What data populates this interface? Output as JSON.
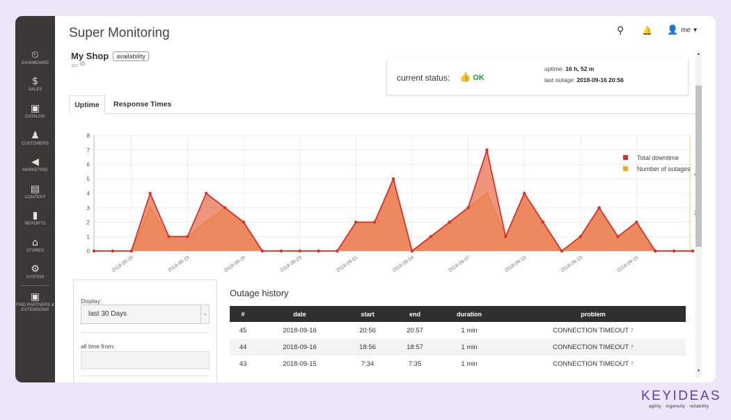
{
  "app": {
    "title": "Super Monitoring"
  },
  "sidebar": {
    "items": [
      {
        "label": "DASHBOARD",
        "icon": "dashboard-icon",
        "glyph": "⏲"
      },
      {
        "label": "SALES",
        "icon": "dollar-icon",
        "glyph": "$"
      },
      {
        "label": "CATALOG",
        "icon": "catalog-box-icon",
        "glyph": "▣"
      },
      {
        "label": "CUSTOMERS",
        "icon": "customers-icon",
        "glyph": "♟"
      },
      {
        "label": "MARKETING",
        "icon": "megaphone-icon",
        "glyph": "◀"
      },
      {
        "label": "CONTENT",
        "icon": "content-layout-icon",
        "glyph": "▤"
      },
      {
        "label": "REPORTS",
        "icon": "bar-chart-icon",
        "glyph": "▮"
      },
      {
        "label": "STORES",
        "icon": "store-icon",
        "glyph": "⌂"
      },
      {
        "label": "SYSTEM",
        "icon": "gear-icon",
        "glyph": "⚙"
      },
      {
        "label": "FIND PARTNERS & EXTENSIONS",
        "icon": "partners-box-icon",
        "glyph": "▣"
      }
    ]
  },
  "topbar": {
    "search_glyph": "⚲",
    "bell_glyph": "🔔",
    "user_glyph": "👤",
    "user_label": "me",
    "user_caret": "▾"
  },
  "shop": {
    "name": "My Shop",
    "badge": "availability",
    "back_glyph": "⇦",
    "gear_glyph": "⚙"
  },
  "status": {
    "label": "current status:",
    "value": "OK",
    "thumb_glyph": "👍",
    "ok_color": "#1a9b2b",
    "uptime_label": "uptime:",
    "uptime_value": "16 h, 52 m",
    "last_outage_label": "last outage:",
    "last_outage_value": "2018-09-16 20:56"
  },
  "tabs": [
    {
      "label": "Uptime",
      "active": true
    },
    {
      "label": "Response Times",
      "active": false
    }
  ],
  "chart_data": {
    "type": "area",
    "x": [
      "2018-08-18",
      "2018-08-19",
      "2018-08-20",
      "2018-08-21",
      "2018-08-22",
      "2018-08-23",
      "2018-08-24",
      "2018-08-25",
      "2018-08-26",
      "2018-08-27",
      "2018-08-28",
      "2018-08-29",
      "2018-08-30",
      "2018-08-31",
      "2018-09-01",
      "2018-09-02",
      "2018-09-03",
      "2018-09-04",
      "2018-09-05",
      "2018-09-06",
      "2018-09-07",
      "2018-09-08",
      "2018-09-09",
      "2018-09-10",
      "2018-09-11",
      "2018-09-12",
      "2018-09-13",
      "2018-09-14",
      "2018-09-15",
      "2018-09-16",
      "2018-09-17",
      "2018-09-18",
      "2018-09-19"
    ],
    "xticks": [
      "2018-08-20",
      "2018-08-23",
      "2018-08-26",
      "2018-08-29",
      "2018-09-01",
      "2018-09-04",
      "2018-09-07",
      "2018-09-10",
      "2018-09-13",
      "2018-09-16"
    ],
    "ylim_left": [
      0,
      8
    ],
    "yticks_left": [
      0,
      1,
      2,
      3,
      4,
      5,
      6,
      7,
      8
    ],
    "ylim_right": [
      0,
      6
    ],
    "yticks_right": [
      2,
      4
    ],
    "series": [
      {
        "name": "Number of outages",
        "axis": "right",
        "color": "#f0a820",
        "values": [
          0,
          0,
          0,
          3,
          1,
          1,
          2,
          3,
          2,
          0,
          0,
          0,
          0,
          0,
          2,
          2,
          5,
          0,
          1,
          2,
          3,
          4,
          1,
          4,
          2,
          0,
          1,
          3,
          1,
          2,
          0,
          0,
          0
        ]
      },
      {
        "name": "Total downtime",
        "axis": "left",
        "color": "#d9302c",
        "values": [
          0,
          0,
          0,
          4,
          1,
          1,
          4,
          3,
          2,
          0,
          0,
          0,
          0,
          0,
          2,
          2,
          5,
          0,
          1,
          2,
          3,
          7,
          1,
          4,
          2,
          0,
          1,
          3,
          1,
          2,
          0,
          0,
          0
        ]
      }
    ],
    "legend": "top-right",
    "grid": true
  },
  "filters": {
    "display_label": "Display:",
    "display_value": "last 30 Days",
    "caret_glyph": "⌄",
    "all_time_label": "all time from:"
  },
  "outage": {
    "title": "Outage history",
    "headers": [
      "#",
      "date",
      "start",
      "end",
      "duration",
      "problem"
    ],
    "help_glyph": "?",
    "rows": [
      {
        "num": "45",
        "date": "2018-09-16",
        "start": "20:56",
        "end": "20:57",
        "duration": "1 min",
        "problem": "CONNECTION TIMEOUT"
      },
      {
        "num": "44",
        "date": "2018-09-16",
        "start": "18:56",
        "end": "18:57",
        "duration": "1 min",
        "problem": "CONNECTION TIMEOUT"
      },
      {
        "num": "43",
        "date": "2018-09-15",
        "start": "7:34",
        "end": "7:35",
        "duration": "1 min",
        "problem": "CONNECTION TIMEOUT"
      }
    ]
  },
  "brand": {
    "name": "KEYIDEAS",
    "tagline": "agility · ingenuity · reliability",
    "color": "#5e3da6"
  }
}
